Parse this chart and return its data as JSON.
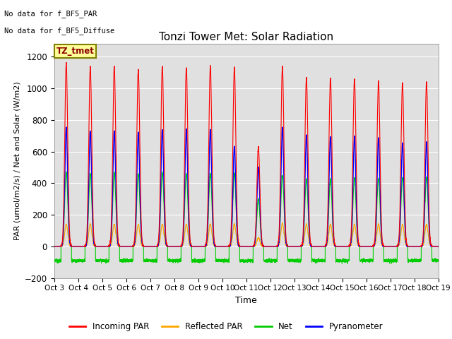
{
  "title": "Tonzi Tower Met: Solar Radiation",
  "xlabel": "Time",
  "ylabel": "PAR (umol/m2/s) / Net and Solar (W/m2)",
  "ylim": [
    -200,
    1280
  ],
  "yticks": [
    -200,
    0,
    200,
    400,
    600,
    800,
    1000,
    1200
  ],
  "n_days": 16,
  "annotation_text1": "No data for f_BF5_PAR",
  "annotation_text2": "No data for f_BF5_Diffuse",
  "label_box_text": "TZ_tmet",
  "colors": {
    "incoming_par": "#FF0000",
    "reflected_par": "#FFA500",
    "net": "#00CC00",
    "pyranometer": "#0000FF"
  },
  "legend_labels": [
    "Incoming PAR",
    "Reflected PAR",
    "Net",
    "Pyranometer"
  ],
  "plot_bg": "#E0E0E0",
  "fig_bg": "#FFFFFF",
  "grid_color": "#FFFFFF",
  "day_peaks": {
    "incoming_par": [
      1160,
      1140,
      1140,
      1120,
      1140,
      1130,
      1140,
      1130,
      630,
      1140,
      1070,
      1065,
      1060,
      1050,
      1030,
      1040
    ],
    "pyranometer": [
      750,
      730,
      730,
      720,
      735,
      740,
      735,
      630,
      500,
      750,
      700,
      690,
      690,
      685,
      650,
      660
    ],
    "net": [
      470,
      460,
      465,
      460,
      465,
      460,
      460,
      460,
      300,
      450,
      425,
      425,
      430,
      430,
      435,
      435
    ],
    "reflected_par": [
      140,
      140,
      140,
      138,
      140,
      140,
      140,
      140,
      55,
      145,
      140,
      140,
      140,
      140,
      140,
      140
    ],
    "net_night": -90,
    "incoming_night": 0,
    "pyranometer_night": 0,
    "reflected_night": 0
  }
}
